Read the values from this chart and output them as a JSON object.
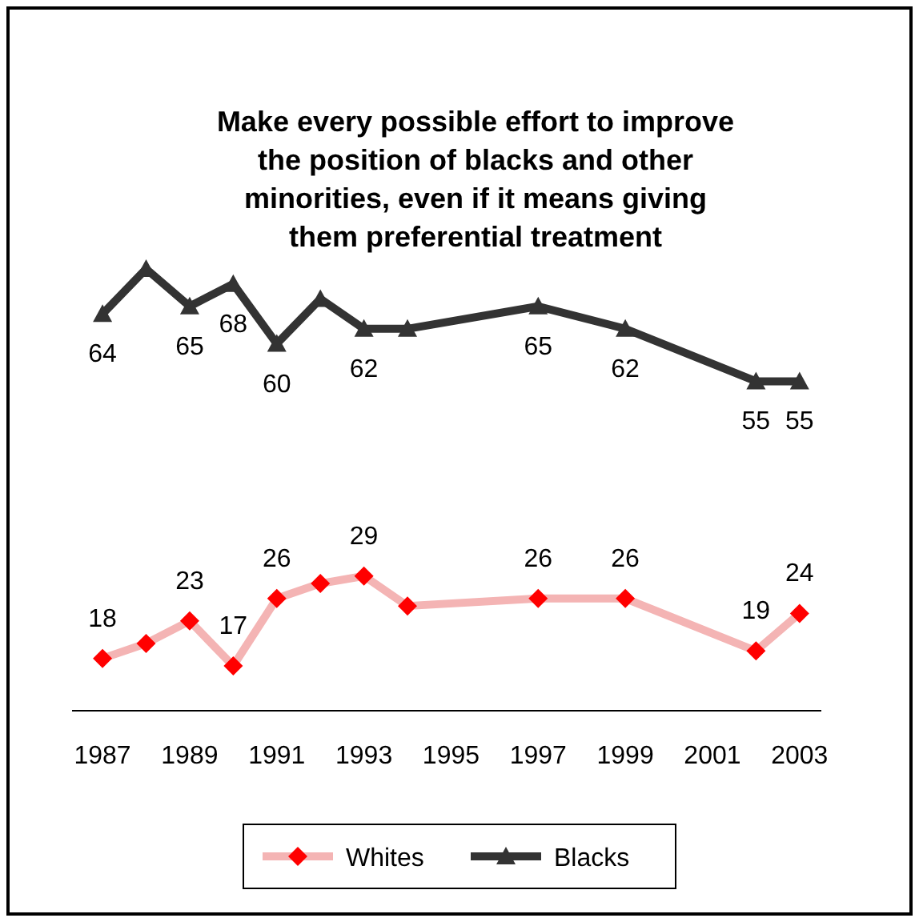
{
  "chart_data": {
    "type": "line",
    "title": "Make every possible effort to improve\nthe position of blacks and other\nminorities, even if it means giving\nthem preferential treatment",
    "x": [
      1987,
      1988,
      1989,
      1990,
      1991,
      1992,
      1993,
      1994,
      1997,
      1999,
      2002,
      2003
    ],
    "xlim": [
      1986.3,
      2003.5
    ],
    "xticks": [
      1987,
      1989,
      1991,
      1993,
      1995,
      1997,
      1999,
      2001,
      2003
    ],
    "tick_labels": "x",
    "legend": "bottom",
    "grid": false,
    "series": [
      {
        "name": "Whites",
        "color": "#f4b4b4",
        "marker": "diamond",
        "values": [
          18,
          20,
          23,
          17,
          26,
          28,
          29,
          25,
          26,
          26,
          19,
          24
        ],
        "value_labels": [
          "18",
          null,
          "23",
          "17",
          "26",
          null,
          "29",
          null,
          "26",
          "26",
          "19",
          "24"
        ]
      },
      {
        "name": "Blacks",
        "color": "#333333",
        "marker": "triangle",
        "values": [
          64,
          70,
          65,
          68,
          60,
          66,
          62,
          62,
          65,
          62,
          55,
          55
        ],
        "value_labels": [
          "64",
          null,
          "65",
          "68",
          "60",
          null,
          "62",
          null,
          "65",
          "62",
          "55",
          "55"
        ]
      }
    ]
  }
}
